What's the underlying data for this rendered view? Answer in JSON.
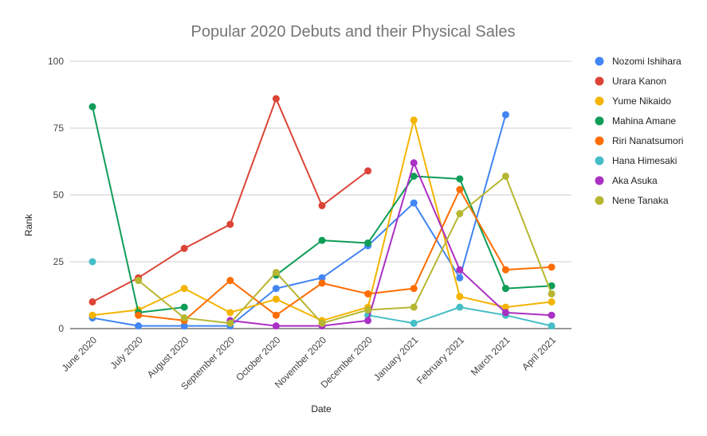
{
  "chart_data": {
    "type": "line",
    "title": "Popular 2020 Debuts and their Physical Sales",
    "xlabel": "Date",
    "ylabel": "Rank",
    "ylim": [
      0,
      100
    ],
    "yticks": [
      0,
      25,
      50,
      75,
      100
    ],
    "grid": "horizontal",
    "legend_position": "right",
    "categories": [
      "June 2020",
      "July 2020",
      "August 2020",
      "September 2020",
      "October 2020",
      "November 2020",
      "December 2020",
      "January 2021",
      "February 2021",
      "March 2021",
      "April 2021"
    ],
    "series": [
      {
        "name": "Nozomi Ishihara",
        "color": "#4285f4",
        "values": [
          4,
          1,
          1,
          1,
          15,
          19,
          31,
          47,
          19,
          80,
          null
        ]
      },
      {
        "name": "Urara Kanon",
        "color": "#db4437",
        "values": [
          10,
          19,
          30,
          39,
          86,
          46,
          59,
          null,
          null,
          null,
          null
        ]
      },
      {
        "name": "Yume Nikaido",
        "color": "#f4b400",
        "values": [
          5,
          7,
          15,
          6,
          11,
          3,
          8,
          78,
          12,
          8,
          10
        ]
      },
      {
        "name": "Mahina Amane",
        "color": "#0f9d58",
        "values": [
          83,
          6,
          8,
          null,
          20,
          33,
          32,
          57,
          56,
          15,
          16
        ]
      },
      {
        "name": "Riri Nanatsumori",
        "color": "#ff6d01",
        "values": [
          null,
          5,
          3,
          18,
          5,
          17,
          13,
          15,
          52,
          22,
          23
        ]
      },
      {
        "name": "Hana Himesaki",
        "color": "#46bdc6",
        "values": [
          25,
          null,
          null,
          null,
          null,
          null,
          5,
          2,
          8,
          5,
          1
        ]
      },
      {
        "name": "Aka Asuka",
        "color": "#ab30c4",
        "values": [
          null,
          null,
          null,
          3,
          1,
          1,
          3,
          62,
          22,
          6,
          5
        ]
      },
      {
        "name": "Nene Tanaka",
        "color": "#b7b631",
        "values": [
          null,
          18,
          4,
          2,
          21,
          2,
          7,
          8,
          43,
          57,
          13
        ]
      }
    ]
  }
}
